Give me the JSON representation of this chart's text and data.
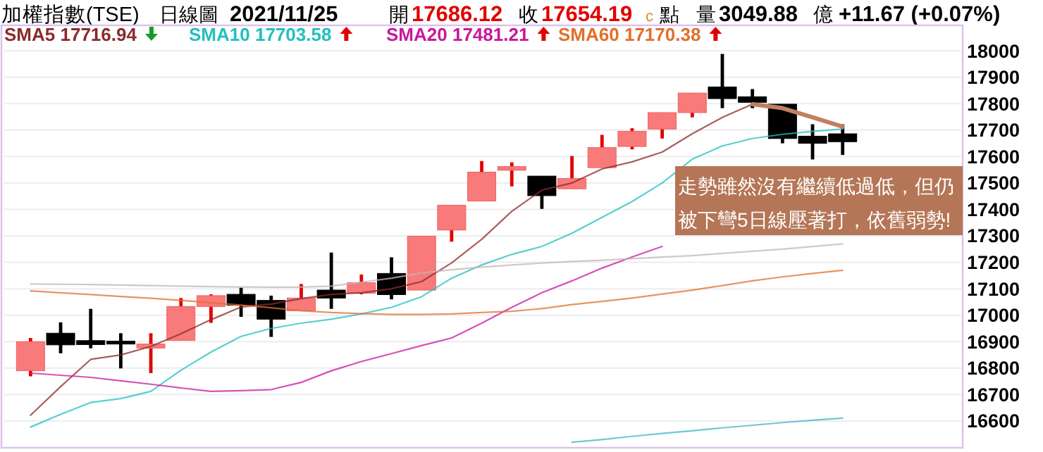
{
  "chart_data": {
    "type": "candlestick",
    "title": "加權指數(TSE)",
    "subtitle": "日線圖",
    "categories": [
      null,
      null,
      null,
      null,
      null,
      null,
      null,
      null,
      null,
      null,
      null,
      null,
      null,
      null,
      null,
      null,
      null,
      null,
      null,
      null,
      null,
      null,
      null,
      null,
      null,
      null,
      null,
      null
    ],
    "ohlc": [
      [
        16790,
        16914,
        16769,
        16900
      ],
      [
        16932,
        16973,
        16856,
        16888
      ],
      [
        16904,
        17024,
        16875,
        16889
      ],
      [
        16902,
        16932,
        16799,
        16891
      ],
      [
        16876,
        16932,
        16781,
        16891
      ],
      [
        16905,
        17065,
        16905,
        17033
      ],
      [
        17033,
        17079,
        16971,
        17074
      ],
      [
        17079,
        17104,
        16994,
        17038
      ],
      [
        17056,
        17074,
        16918,
        16985
      ],
      [
        17017,
        17118,
        17017,
        17065
      ],
      [
        17095,
        17237,
        17024,
        17065
      ],
      [
        17083,
        17154,
        17079,
        17123
      ],
      [
        17158,
        17219,
        17060,
        17078
      ],
      [
        17095,
        17299,
        17095,
        17299
      ],
      [
        17322,
        17416,
        17278,
        17416
      ],
      [
        17432,
        17583,
        17432,
        17541
      ],
      [
        17548,
        17578,
        17487,
        17562
      ],
      [
        17526,
        17526,
        17402,
        17452
      ],
      [
        17478,
        17602,
        17478,
        17517
      ],
      [
        17558,
        17682,
        17558,
        17634
      ],
      [
        17638,
        17707,
        17627,
        17695
      ],
      [
        17704,
        17766,
        17668,
        17766
      ],
      [
        17766,
        17840,
        17748,
        17840
      ],
      [
        17863,
        17988,
        17783,
        17819
      ],
      [
        17826,
        17855,
        17783,
        17805
      ],
      [
        17798,
        17798,
        17650,
        17668
      ],
      [
        17677,
        17722,
        17589,
        17650
      ],
      [
        17686,
        17722,
        17606,
        17656
      ]
    ],
    "series": [
      {
        "type": "line",
        "name": "SMA5 17716.94",
        "color": "#8b2a2a",
        "values": [
          16622,
          16730,
          16833,
          16850,
          16882,
          16930,
          16983,
          17031,
          17042,
          17063,
          17079,
          17085,
          17100,
          17127,
          17198,
          17287,
          17393,
          17473,
          17500,
          17553,
          17580,
          17617,
          17686,
          17748,
          17798,
          17783,
          17748,
          17713
        ]
      },
      {
        "type": "line",
        "name": "SMA10 17703.58",
        "color": "#22bfc0",
        "values": [
          16577,
          16625,
          16670,
          16685,
          16712,
          16792,
          16861,
          16920,
          16950,
          16970,
          16985,
          17005,
          17030,
          17070,
          17140,
          17190,
          17230,
          17260,
          17310,
          17370,
          17430,
          17500,
          17590,
          17640,
          17668,
          17684,
          17695,
          17704
        ]
      },
      {
        "type": "line",
        "name": "SMA20 17481.21",
        "color": "#c8189c",
        "values": [
          16781,
          16773,
          16765,
          16752,
          16739,
          16725,
          16712,
          16715,
          16719,
          16746,
          16790,
          16825,
          16855,
          16885,
          16914,
          16970,
          17030,
          17085,
          17130,
          17178,
          17220,
          17260,
          null,
          null,
          null,
          null,
          null,
          null
        ]
      },
      {
        "type": "line",
        "name": "SMA60 17170.38",
        "color": "#e0702c",
        "values": [
          17092,
          17085,
          17078,
          17071,
          17064,
          17056,
          17047,
          17038,
          17028,
          17017,
          17010,
          17006,
          17003,
          17003,
          17005,
          17010,
          17015,
          17025,
          17040,
          17052,
          17065,
          17080,
          17095,
          17112,
          17130,
          17145,
          17158,
          17170
        ]
      },
      {
        "type": "line",
        "color": "#c4b4b4",
        "values": [
          17118,
          17117,
          17116,
          17114,
          17112,
          17110,
          17108,
          17107,
          17106,
          17106,
          17110,
          17125,
          17140,
          17160,
          17172,
          17182,
          17190,
          17197,
          17203,
          17208,
          17214,
          17220,
          17225,
          17234,
          17242,
          17250,
          17260,
          17270
        ]
      },
      {
        "type": "line",
        "color": "#40b4c4",
        "values": [
          null,
          null,
          null,
          null,
          null,
          null,
          null,
          null,
          null,
          null,
          null,
          null,
          null,
          null,
          null,
          null,
          null,
          null,
          16520,
          16530,
          16542,
          16553,
          16563,
          16574,
          16584,
          16594,
          16603,
          16611
        ]
      }
    ],
    "ylim": [
      16510,
      18096
    ],
    "yticks": [
      16600,
      16700,
      16800,
      16900,
      17000,
      17100,
      17200,
      17300,
      17400,
      17500,
      17600,
      17700,
      17800,
      17900,
      18000
    ],
    "grid": "y",
    "legend": "top left",
    "tick_labels": "y",
    "annotations": [
      "2021/11/25",
      "開",
      "17686.12",
      "收",
      "17654.19",
      "c",
      "點",
      "量",
      "3049.88",
      "億",
      "+11.67 (+0.07%)",
      "走勢雖然沒有繼續低過低，但仍被下彎5日線壓著打，依舊弱勢!"
    ]
  }
}
